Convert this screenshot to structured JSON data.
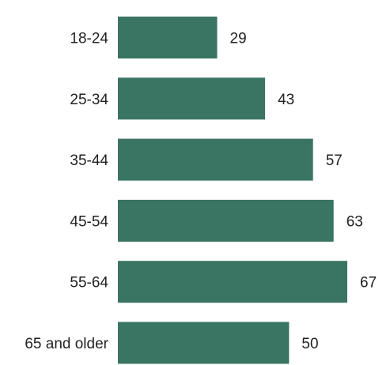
{
  "chart_data": {
    "type": "bar",
    "orientation": "horizontal",
    "categories": [
      "18-24",
      "25-34",
      "35-44",
      "45-54",
      "55-64",
      "65 and older"
    ],
    "values": [
      29,
      43,
      57,
      63,
      67,
      50
    ],
    "title": "",
    "xlabel": "",
    "ylabel": "",
    "xlim": [
      0,
      67
    ],
    "grid": false,
    "legend": "none",
    "bar_color": "#3a7463"
  }
}
